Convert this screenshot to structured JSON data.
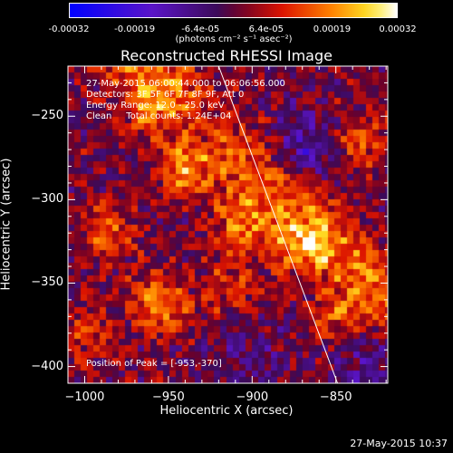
{
  "colorbar": {
    "ticks": [
      "-0.00032",
      "-0.00019",
      "-6.4e-05",
      "6.4e-05",
      "0.00019",
      "0.00032"
    ],
    "unit": "(photons cm⁻² s⁻¹ asec⁻²)"
  },
  "chart_data": {
    "type": "heatmap",
    "title": "Reconstructed RHESSI Image",
    "xlabel": "Heliocentric X (arcsec)",
    "ylabel": "Heliocentric Y (arcsec)",
    "xlim": [
      -1010,
      -819
    ],
    "ylim": [
      -410,
      -220
    ],
    "xticks": [
      -1000,
      -950,
      -900,
      -850
    ],
    "yticks": [
      -400,
      -350,
      -300,
      -250
    ],
    "xtick_labels": [
      "−1000",
      "−950",
      "−900",
      "−850"
    ],
    "ytick_labels": [
      "−400",
      "−350",
      "−300",
      "−250"
    ],
    "limb_line": [
      [
        -920,
        -220
      ],
      [
        -849,
        -410
      ]
    ],
    "peak": [
      -953,
      -370
    ],
    "colorbar_range": [
      -0.00032,
      0.00032
    ],
    "hot_spots": [
      {
        "x": -940,
        "y": -282,
        "intensity": 1.0
      },
      {
        "x": -955,
        "y": -363,
        "intensity": 1.0
      },
      {
        "x": -905,
        "y": -315,
        "intensity": 0.85
      },
      {
        "x": -870,
        "y": -330,
        "intensity": 0.75
      },
      {
        "x": -985,
        "y": -320,
        "intensity": 0.7
      },
      {
        "x": -848,
        "y": -370,
        "intensity": 0.65
      },
      {
        "x": -835,
        "y": -265,
        "intensity": 0.7
      },
      {
        "x": -965,
        "y": -245,
        "intensity": 0.6
      },
      {
        "x": -1000,
        "y": -380,
        "intensity": 0.55
      },
      {
        "x": -912,
        "y": -352,
        "intensity": 0.55
      }
    ],
    "cold_spots": [
      {
        "x": -870,
        "y": -270,
        "intensity": -0.8
      },
      {
        "x": -925,
        "y": -255,
        "intensity": -0.5
      },
      {
        "x": -900,
        "y": -395,
        "intensity": -0.45
      },
      {
        "x": -830,
        "y": -395,
        "intensity": -0.6
      }
    ]
  },
  "info": {
    "line1": "27-May-2015 06:00:44.000 to 06:06:56.000",
    "line2": "Detectors: 3F 5F 6F 7F 8F 9F, Att 0",
    "line3": "Energy Range: 12.0 - 25.0 keV",
    "line4": "Clean     Total counts: 1.24E+04",
    "peak_text": "Position of Peak = [-953,-370]"
  },
  "timestamp": "27-May-2015 10:37"
}
